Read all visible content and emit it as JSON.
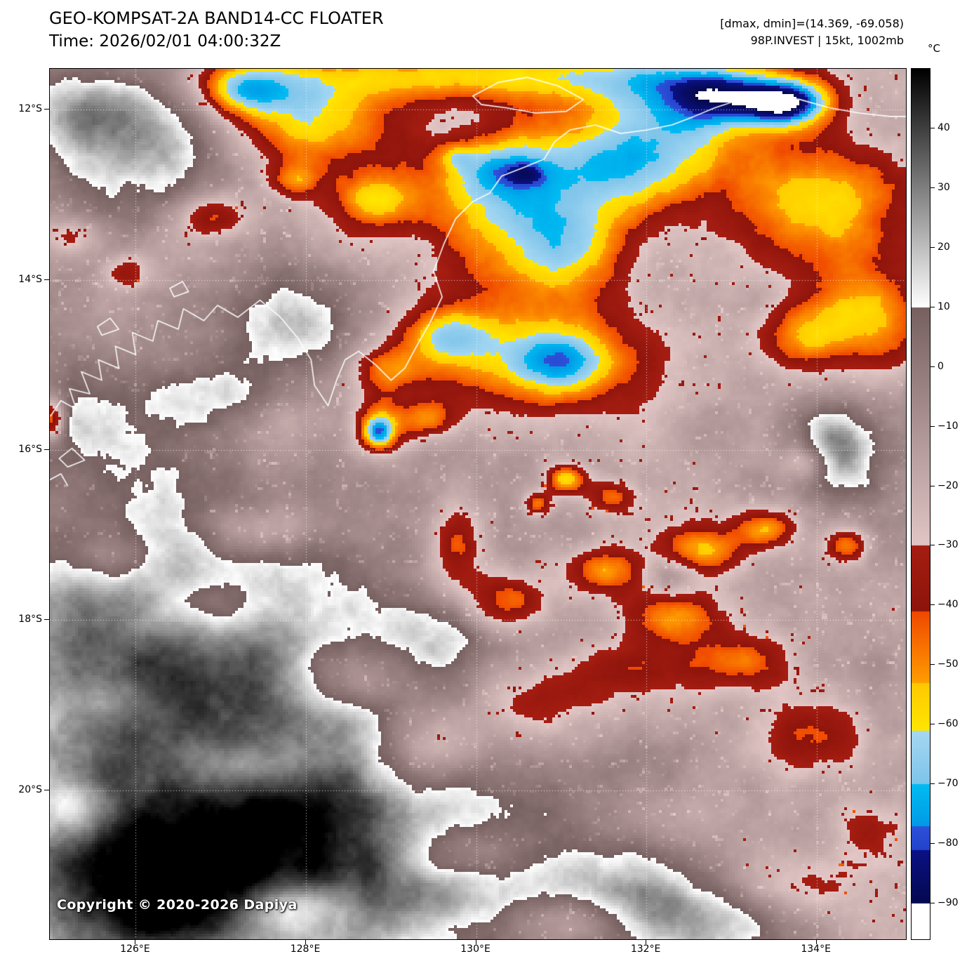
{
  "header": {
    "title": "GEO-KOMPSAT-2A BAND14-CC FLOATER",
    "time": "Time: 2026/02/01 04:00:32Z",
    "stats": "[dmax, dmin]=(14.369, -69.058)",
    "storm": "98P.INVEST | 15kt, 1002mb"
  },
  "plot": {
    "copyright": "Copyright © 2020-2026 Dapiya",
    "lat_ticks": [
      {
        "label": "12°S",
        "value": 12
      },
      {
        "label": "14°S",
        "value": 14
      },
      {
        "label": "16°S",
        "value": 16
      },
      {
        "label": "18°S",
        "value": 18
      },
      {
        "label": "20°S",
        "value": 20
      }
    ],
    "lon_ticks": [
      {
        "label": "126°E",
        "value": 126
      },
      {
        "label": "128°E",
        "value": 128
      },
      {
        "label": "130°E",
        "value": 130
      },
      {
        "label": "132°E",
        "value": 132
      },
      {
        "label": "134°E",
        "value": 134
      }
    ],
    "lon_range": [
      124.99,
      135.05
    ],
    "lat_range_south": [
      11.52,
      21.75
    ],
    "coastline": [
      [
        [
          125.0,
          15.6
        ],
        [
          125.12,
          15.42
        ],
        [
          125.3,
          15.52
        ],
        [
          125.22,
          15.28
        ],
        [
          125.46,
          15.34
        ],
        [
          125.36,
          15.08
        ],
        [
          125.6,
          15.18
        ],
        [
          125.56,
          14.94
        ],
        [
          125.8,
          15.04
        ],
        [
          125.76,
          14.78
        ],
        [
          126.0,
          14.88
        ],
        [
          125.96,
          14.62
        ],
        [
          126.2,
          14.72
        ],
        [
          126.26,
          14.48
        ],
        [
          126.5,
          14.58
        ],
        [
          126.56,
          14.34
        ],
        [
          126.8,
          14.48
        ],
        [
          126.96,
          14.3
        ],
        [
          127.2,
          14.44
        ],
        [
          127.46,
          14.24
        ],
        [
          127.7,
          14.44
        ],
        [
          127.9,
          14.68
        ],
        [
          128.06,
          14.94
        ],
        [
          128.1,
          15.24
        ],
        [
          128.26,
          15.48
        ],
        [
          128.36,
          15.18
        ],
        [
          128.46,
          14.94
        ],
        [
          128.62,
          14.84
        ],
        [
          128.82,
          15.0
        ],
        [
          129.0,
          15.18
        ],
        [
          129.16,
          15.04
        ],
        [
          129.3,
          14.78
        ],
        [
          129.46,
          14.5
        ],
        [
          129.6,
          14.2
        ],
        [
          129.5,
          13.9
        ],
        [
          129.62,
          13.58
        ],
        [
          129.76,
          13.28
        ],
        [
          129.96,
          13.08
        ],
        [
          130.16,
          12.98
        ],
        [
          130.3,
          12.78
        ],
        [
          130.56,
          12.68
        ],
        [
          130.8,
          12.58
        ],
        [
          130.92,
          12.38
        ],
        [
          131.1,
          12.24
        ],
        [
          131.4,
          12.18
        ],
        [
          131.7,
          12.28
        ],
        [
          132.0,
          12.24
        ],
        [
          132.3,
          12.18
        ],
        [
          132.56,
          12.08
        ],
        [
          132.8,
          11.98
        ],
        [
          133.1,
          11.88
        ],
        [
          133.46,
          11.84
        ],
        [
          133.8,
          11.88
        ],
        [
          134.16,
          11.98
        ],
        [
          134.5,
          12.04
        ],
        [
          134.86,
          12.08
        ],
        [
          135.1,
          12.08
        ]
      ],
      [
        [
          129.96,
          11.84
        ],
        [
          130.26,
          11.68
        ],
        [
          130.6,
          11.62
        ],
        [
          130.96,
          11.72
        ],
        [
          131.26,
          11.88
        ],
        [
          131.06,
          12.02
        ],
        [
          130.7,
          12.04
        ],
        [
          130.36,
          11.98
        ],
        [
          130.06,
          11.94
        ],
        [
          129.96,
          11.84
        ]
      ],
      [
        [
          125.1,
          16.1
        ],
        [
          125.25,
          15.98
        ],
        [
          125.4,
          16.12
        ],
        [
          125.2,
          16.2
        ],
        [
          125.1,
          16.1
        ]
      ],
      [
        [
          124.99,
          16.35
        ],
        [
          125.12,
          16.28
        ],
        [
          125.2,
          16.42
        ]
      ],
      [
        [
          125.55,
          14.55
        ],
        [
          125.7,
          14.45
        ],
        [
          125.8,
          14.58
        ],
        [
          125.6,
          14.65
        ],
        [
          125.55,
          14.55
        ]
      ],
      [
        [
          126.4,
          14.1
        ],
        [
          126.55,
          14.02
        ],
        [
          126.62,
          14.14
        ],
        [
          126.45,
          14.2
        ],
        [
          126.4,
          14.1
        ]
      ]
    ]
  },
  "colorbar": {
    "unit_label": "°C",
    "domain": [
      50,
      -96
    ],
    "ticks": [
      {
        "label": "40",
        "value": 40
      },
      {
        "label": "30",
        "value": 30
      },
      {
        "label": "20",
        "value": 20
      },
      {
        "label": "10",
        "value": 10
      },
      {
        "label": "0",
        "value": 0
      },
      {
        "label": "−10",
        "value": -10
      },
      {
        "label": "−20",
        "value": -20
      },
      {
        "label": "−30",
        "value": -30
      },
      {
        "label": "−40",
        "value": -40
      },
      {
        "label": "−50",
        "value": -50
      },
      {
        "label": "−60",
        "value": -60
      },
      {
        "label": "−70",
        "value": -70
      },
      {
        "label": "−80",
        "value": -80
      },
      {
        "label": "−90",
        "value": -90
      }
    ],
    "segments": [
      {
        "from": 50,
        "to": 10,
        "c0": "#000000",
        "c1": "#ffffff"
      },
      {
        "from": 10,
        "to": -30,
        "c0": "#776060",
        "c1": "#e2c6c6"
      },
      {
        "from": -30,
        "to": -41,
        "c0": "#a61d12",
        "c1": "#8e140b"
      },
      {
        "from": -41,
        "to": -53,
        "c0": "#f04800",
        "c1": "#ff9e00"
      },
      {
        "from": -53,
        "to": -61,
        "c0": "#ffc800",
        "c1": "#ffe600"
      },
      {
        "from": -61,
        "to": -70,
        "c0": "#a6d8f2",
        "c1": "#7ec4ea"
      },
      {
        "from": -70,
        "to": -77,
        "c0": "#00bcf2",
        "c1": "#009ae6"
      },
      {
        "from": -77,
        "to": -81,
        "c0": "#2e51da",
        "c1": "#2343cc"
      },
      {
        "from": -81,
        "to": -90,
        "c0": "#0b1186",
        "c1": "#05094f"
      },
      {
        "from": -90,
        "to": -96,
        "c0": "#ffffff",
        "c1": "#ffffff"
      }
    ]
  }
}
